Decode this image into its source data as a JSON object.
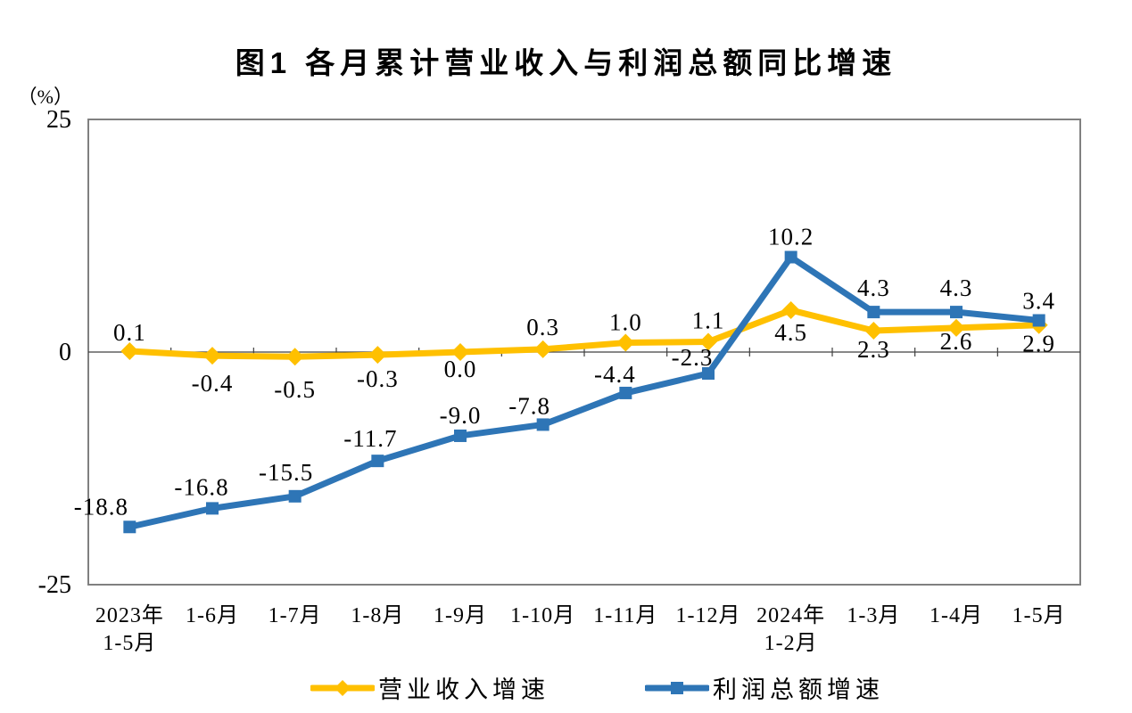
{
  "page": {
    "background": "#ffffff"
  },
  "chart_data": {
    "type": "line",
    "title": "图1  各月累计营业收入与利润总额同比增速",
    "y_unit": "（%）",
    "ylabel": "",
    "xlabel": "",
    "ylim": [
      -25,
      25
    ],
    "y_ticks": [
      25,
      0,
      -25
    ],
    "grid": false,
    "legend_position": "bottom",
    "axis_color": "#808080",
    "zero_line_color": "#404040",
    "text_color": "#000000",
    "categories": [
      [
        "2023年",
        "1-5月"
      ],
      [
        "1-6月"
      ],
      [
        "1-7月"
      ],
      [
        "1-8月"
      ],
      [
        "1-9月"
      ],
      [
        "1-10月"
      ],
      [
        "1-11月"
      ],
      [
        "1-12月"
      ],
      [
        "2024年",
        "1-2月"
      ],
      [
        "1-3月"
      ],
      [
        "1-4月"
      ],
      [
        "1-5月"
      ]
    ],
    "series": [
      {
        "name": "营业收入增速",
        "color": "#FFC000",
        "marker": "diamond",
        "values": [
          0.1,
          -0.4,
          -0.5,
          -0.3,
          0.0,
          0.3,
          1.0,
          1.1,
          4.5,
          2.3,
          2.6,
          2.9
        ],
        "labels": [
          "0.1",
          "-0.4",
          "-0.5",
          "-0.3",
          "0.0",
          "0.3",
          "1.0",
          "1.1",
          "4.5",
          "2.3",
          "2.6",
          "2.9"
        ],
        "label_offsets": [
          [
            0,
            -12
          ],
          [
            0,
            40
          ],
          [
            0,
            46
          ],
          [
            0,
            36
          ],
          [
            0,
            28
          ],
          [
            0,
            -16
          ],
          [
            0,
            -14
          ],
          [
            0,
            -15
          ],
          [
            0,
            34
          ],
          [
            0,
            30
          ],
          [
            0,
            24
          ],
          [
            0,
            30
          ]
        ]
      },
      {
        "name": "利润总额增速",
        "color": "#2E75B6",
        "marker": "square",
        "values": [
          -18.8,
          -16.8,
          -15.5,
          -11.7,
          -9.0,
          -7.8,
          -4.4,
          -2.3,
          10.2,
          4.3,
          4.3,
          3.4
        ],
        "labels": [
          "-18.8",
          "-16.8",
          "-15.5",
          "-11.7",
          "-9.0",
          "-7.8",
          "-4.4",
          "-2.3",
          "10.2",
          "4.3",
          "4.3",
          "3.4"
        ],
        "label_offsets": [
          [
            -32,
            -14
          ],
          [
            -12,
            -15
          ],
          [
            -10,
            -18
          ],
          [
            -8,
            -16
          ],
          [
            0,
            -14
          ],
          [
            -15,
            -12
          ],
          [
            -12,
            -12
          ],
          [
            -18,
            -9
          ],
          [
            0,
            -14
          ],
          [
            0,
            -18
          ],
          [
            0,
            -18
          ],
          [
            0,
            -13
          ]
        ]
      }
    ]
  }
}
